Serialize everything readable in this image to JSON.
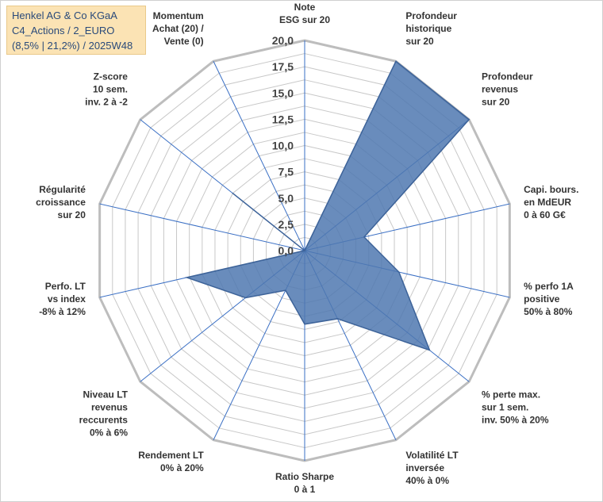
{
  "title_box": {
    "line1": "Henkel AG & Co KGaA",
    "line2": "C4_Actions / 2_EURO",
    "line3": "(8,5% | 21,2%) / 2025W48"
  },
  "chart_data": {
    "type": "radar",
    "title": "",
    "rlim": [
      0,
      20
    ],
    "ticks": [
      "0,0",
      "2,5",
      "5,0",
      "7,5",
      "10,0",
      "12,5",
      "15,0",
      "17,5",
      "20,0"
    ],
    "grid": true,
    "axes": [
      [
        "Note",
        "ESG sur 20"
      ],
      [
        "Profondeur",
        "historique",
        "sur 20"
      ],
      [
        "Profondeur",
        "revenus",
        "sur 20"
      ],
      [
        "Capi. bours.",
        "en MdEUR",
        "0 à 60 G€"
      ],
      [
        "% perfo 1A",
        "positive",
        "50% à 80%"
      ],
      [
        "% perte max.",
        "sur 1 sem.",
        "inv. 50% à 20%"
      ],
      [
        "Volatilité LT",
        "inversée",
        "40% à 0%"
      ],
      [
        "Ratio Sharpe",
        "0 à 1"
      ],
      [
        "Rendement LT",
        "0% à 20%"
      ],
      [
        "Niveau LT",
        "revenus",
        "reccurents",
        "0% à 6%"
      ],
      [
        "Perfo. LT",
        "vs index",
        "-8% à 12%"
      ],
      [
        "Régularité",
        "croissance",
        "sur 20"
      ],
      [
        "Z-score",
        "10 sem.",
        "inv. 2 à -2"
      ],
      [
        "Momentum",
        "Achat (20) /",
        "Vente (0)"
      ]
    ],
    "values": [
      0,
      20,
      20,
      5.8,
      9.2,
      15.2,
      7.2,
      7.0,
      4.2,
      7.2,
      11.5,
      0,
      8.8,
      0
    ],
    "colors": {
      "fill": "#4f78b0",
      "stroke": "#3d6399",
      "grid": "#c8c8c8",
      "spoke": "#3a6fc4"
    }
  }
}
